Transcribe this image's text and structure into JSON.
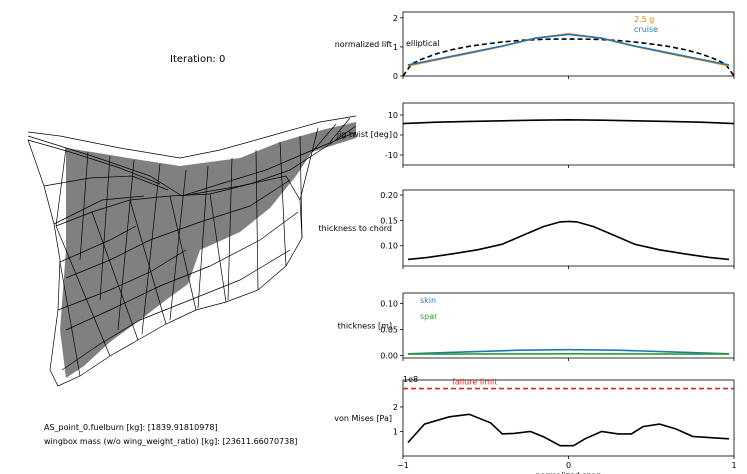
{
  "header": {
    "iteration_label": "Iteration: 0"
  },
  "footer": {
    "fuelburn_text": "AS_point_0.fuelburn [kg]: [1839.91810978]",
    "wingbox_mass_text": "wingbox mass (w/o wing_weight_ratio) [kg]: [23611.66070738]"
  },
  "colors": {
    "cruise": "#1f77b4",
    "g25": "#ff7f0e",
    "skin": "#1f77b4",
    "spar": "#2ca02c",
    "failure": "#d62728",
    "structure": "#808080"
  },
  "chart_data": [
    {
      "type": "line",
      "ylabel": "normalized lift",
      "xlim": [
        -1,
        1
      ],
      "ylim": [
        0,
        2.2
      ],
      "yticks": [
        "0",
        "1",
        "2"
      ],
      "series": [
        {
          "name": "elliptical",
          "style": "dashed",
          "color": "#000000",
          "x": [
            -1,
            -0.95,
            -0.9,
            -0.8,
            -0.7,
            -0.6,
            -0.5,
            -0.4,
            -0.3,
            -0.2,
            -0.1,
            0,
            0.1,
            0.2,
            0.3,
            0.4,
            0.5,
            0.6,
            0.7,
            0.8,
            0.9,
            0.95,
            1
          ],
          "y": [
            0,
            0.4,
            0.55,
            0.76,
            0.91,
            1.02,
            1.1,
            1.17,
            1.22,
            1.25,
            1.27,
            1.27,
            1.27,
            1.25,
            1.22,
            1.17,
            1.1,
            1.02,
            0.91,
            0.76,
            0.55,
            0.4,
            0
          ]
        },
        {
          "name": "2.5 g",
          "style": "solid",
          "color": "#ff7f0e",
          "x": [
            -0.97,
            -0.8,
            -0.6,
            -0.4,
            -0.2,
            0,
            0.2,
            0.4,
            0.6,
            0.8,
            0.97
          ],
          "y": [
            0.35,
            0.55,
            0.78,
            1.02,
            1.3,
            1.45,
            1.3,
            1.02,
            0.78,
            0.55,
            0.35
          ]
        },
        {
          "name": "cruise",
          "style": "solid",
          "color": "#1f77b4",
          "x": [
            -0.97,
            -0.8,
            -0.6,
            -0.4,
            -0.2,
            0,
            0.2,
            0.4,
            0.6,
            0.8,
            0.97
          ],
          "y": [
            0.38,
            0.57,
            0.8,
            1.03,
            1.3,
            1.43,
            1.3,
            1.03,
            0.8,
            0.57,
            0.38
          ]
        }
      ],
      "legend": [
        "elliptical",
        "2.5 g",
        "cruise"
      ]
    },
    {
      "type": "line",
      "ylabel": "jig twist [deg]",
      "xlim": [
        -1,
        1
      ],
      "ylim": [
        -15,
        16
      ],
      "yticks": [
        "10",
        "0",
        "-10"
      ],
      "series": [
        {
          "name": "twist",
          "style": "solid",
          "color": "#000000",
          "x": [
            -1,
            -0.8,
            -0.6,
            -0.4,
            -0.2,
            0,
            0.2,
            0.4,
            0.6,
            0.8,
            1
          ],
          "y": [
            5.7,
            6.4,
            6.8,
            7.1,
            7.4,
            7.6,
            7.4,
            7.1,
            6.8,
            6.4,
            5.7
          ]
        }
      ]
    },
    {
      "type": "line",
      "ylabel": "thickness to chord",
      "xlim": [
        -1,
        1
      ],
      "ylim": [
        0.06,
        0.21
      ],
      "yticks": [
        "0.20",
        "0.15",
        "0.10"
      ],
      "series": [
        {
          "name": "t/c",
          "style": "solid",
          "color": "#000000",
          "x": [
            -0.97,
            -0.85,
            -0.7,
            -0.55,
            -0.4,
            -0.28,
            -0.15,
            -0.05,
            0,
            0.05,
            0.15,
            0.28,
            0.4,
            0.55,
            0.7,
            0.85,
            0.97
          ],
          "y": [
            0.073,
            0.077,
            0.084,
            0.092,
            0.103,
            0.12,
            0.138,
            0.147,
            0.148,
            0.147,
            0.138,
            0.12,
            0.103,
            0.092,
            0.084,
            0.077,
            0.073
          ]
        }
      ]
    },
    {
      "type": "line",
      "ylabel": "thickness [m]",
      "xlim": [
        -1,
        1
      ],
      "ylim": [
        -0.005,
        0.12
      ],
      "yticks": [
        "0.10",
        "0.05",
        "0.00"
      ],
      "series": [
        {
          "name": "skin",
          "style": "solid",
          "color": "#1f77b4",
          "x": [
            -0.97,
            -0.6,
            -0.3,
            0,
            0.3,
            0.6,
            0.97
          ],
          "y": [
            0.003,
            0.007,
            0.01,
            0.011,
            0.01,
            0.007,
            0.003
          ]
        },
        {
          "name": "spar",
          "style": "solid",
          "color": "#2ca02c",
          "x": [
            -0.97,
            0,
            0.97
          ],
          "y": [
            0.0025,
            0.003,
            0.0025
          ]
        }
      ],
      "legend": [
        "skin",
        "spar"
      ]
    },
    {
      "type": "line",
      "ylabel": "von Mises [Pa]",
      "offset_label": "1e8",
      "xlabel": "normalized span",
      "xlim": [
        -1,
        1
      ],
      "ylim": [
        0,
        3.1
      ],
      "yticks": [
        "2",
        "1"
      ],
      "xticks": [
        "−1",
        "0",
        "1"
      ],
      "failure_limit": {
        "label": "failure limit",
        "value": 2.75
      },
      "series": [
        {
          "name": "von Mises",
          "style": "solid",
          "color": "#000000",
          "x": [
            -0.97,
            -0.87,
            -0.72,
            -0.6,
            -0.47,
            -0.4,
            -0.33,
            -0.23,
            -0.15,
            -0.05,
            0.03,
            0.1,
            0.2,
            0.3,
            0.38,
            0.45,
            0.55,
            0.65,
            0.75,
            0.85,
            0.97
          ],
          "y": [
            0.55,
            1.3,
            1.6,
            1.7,
            1.35,
            0.9,
            0.92,
            1.0,
            0.78,
            0.42,
            0.42,
            0.7,
            1.0,
            0.9,
            0.9,
            1.2,
            1.3,
            1.1,
            0.8,
            0.75,
            0.7
          ]
        }
      ]
    }
  ]
}
